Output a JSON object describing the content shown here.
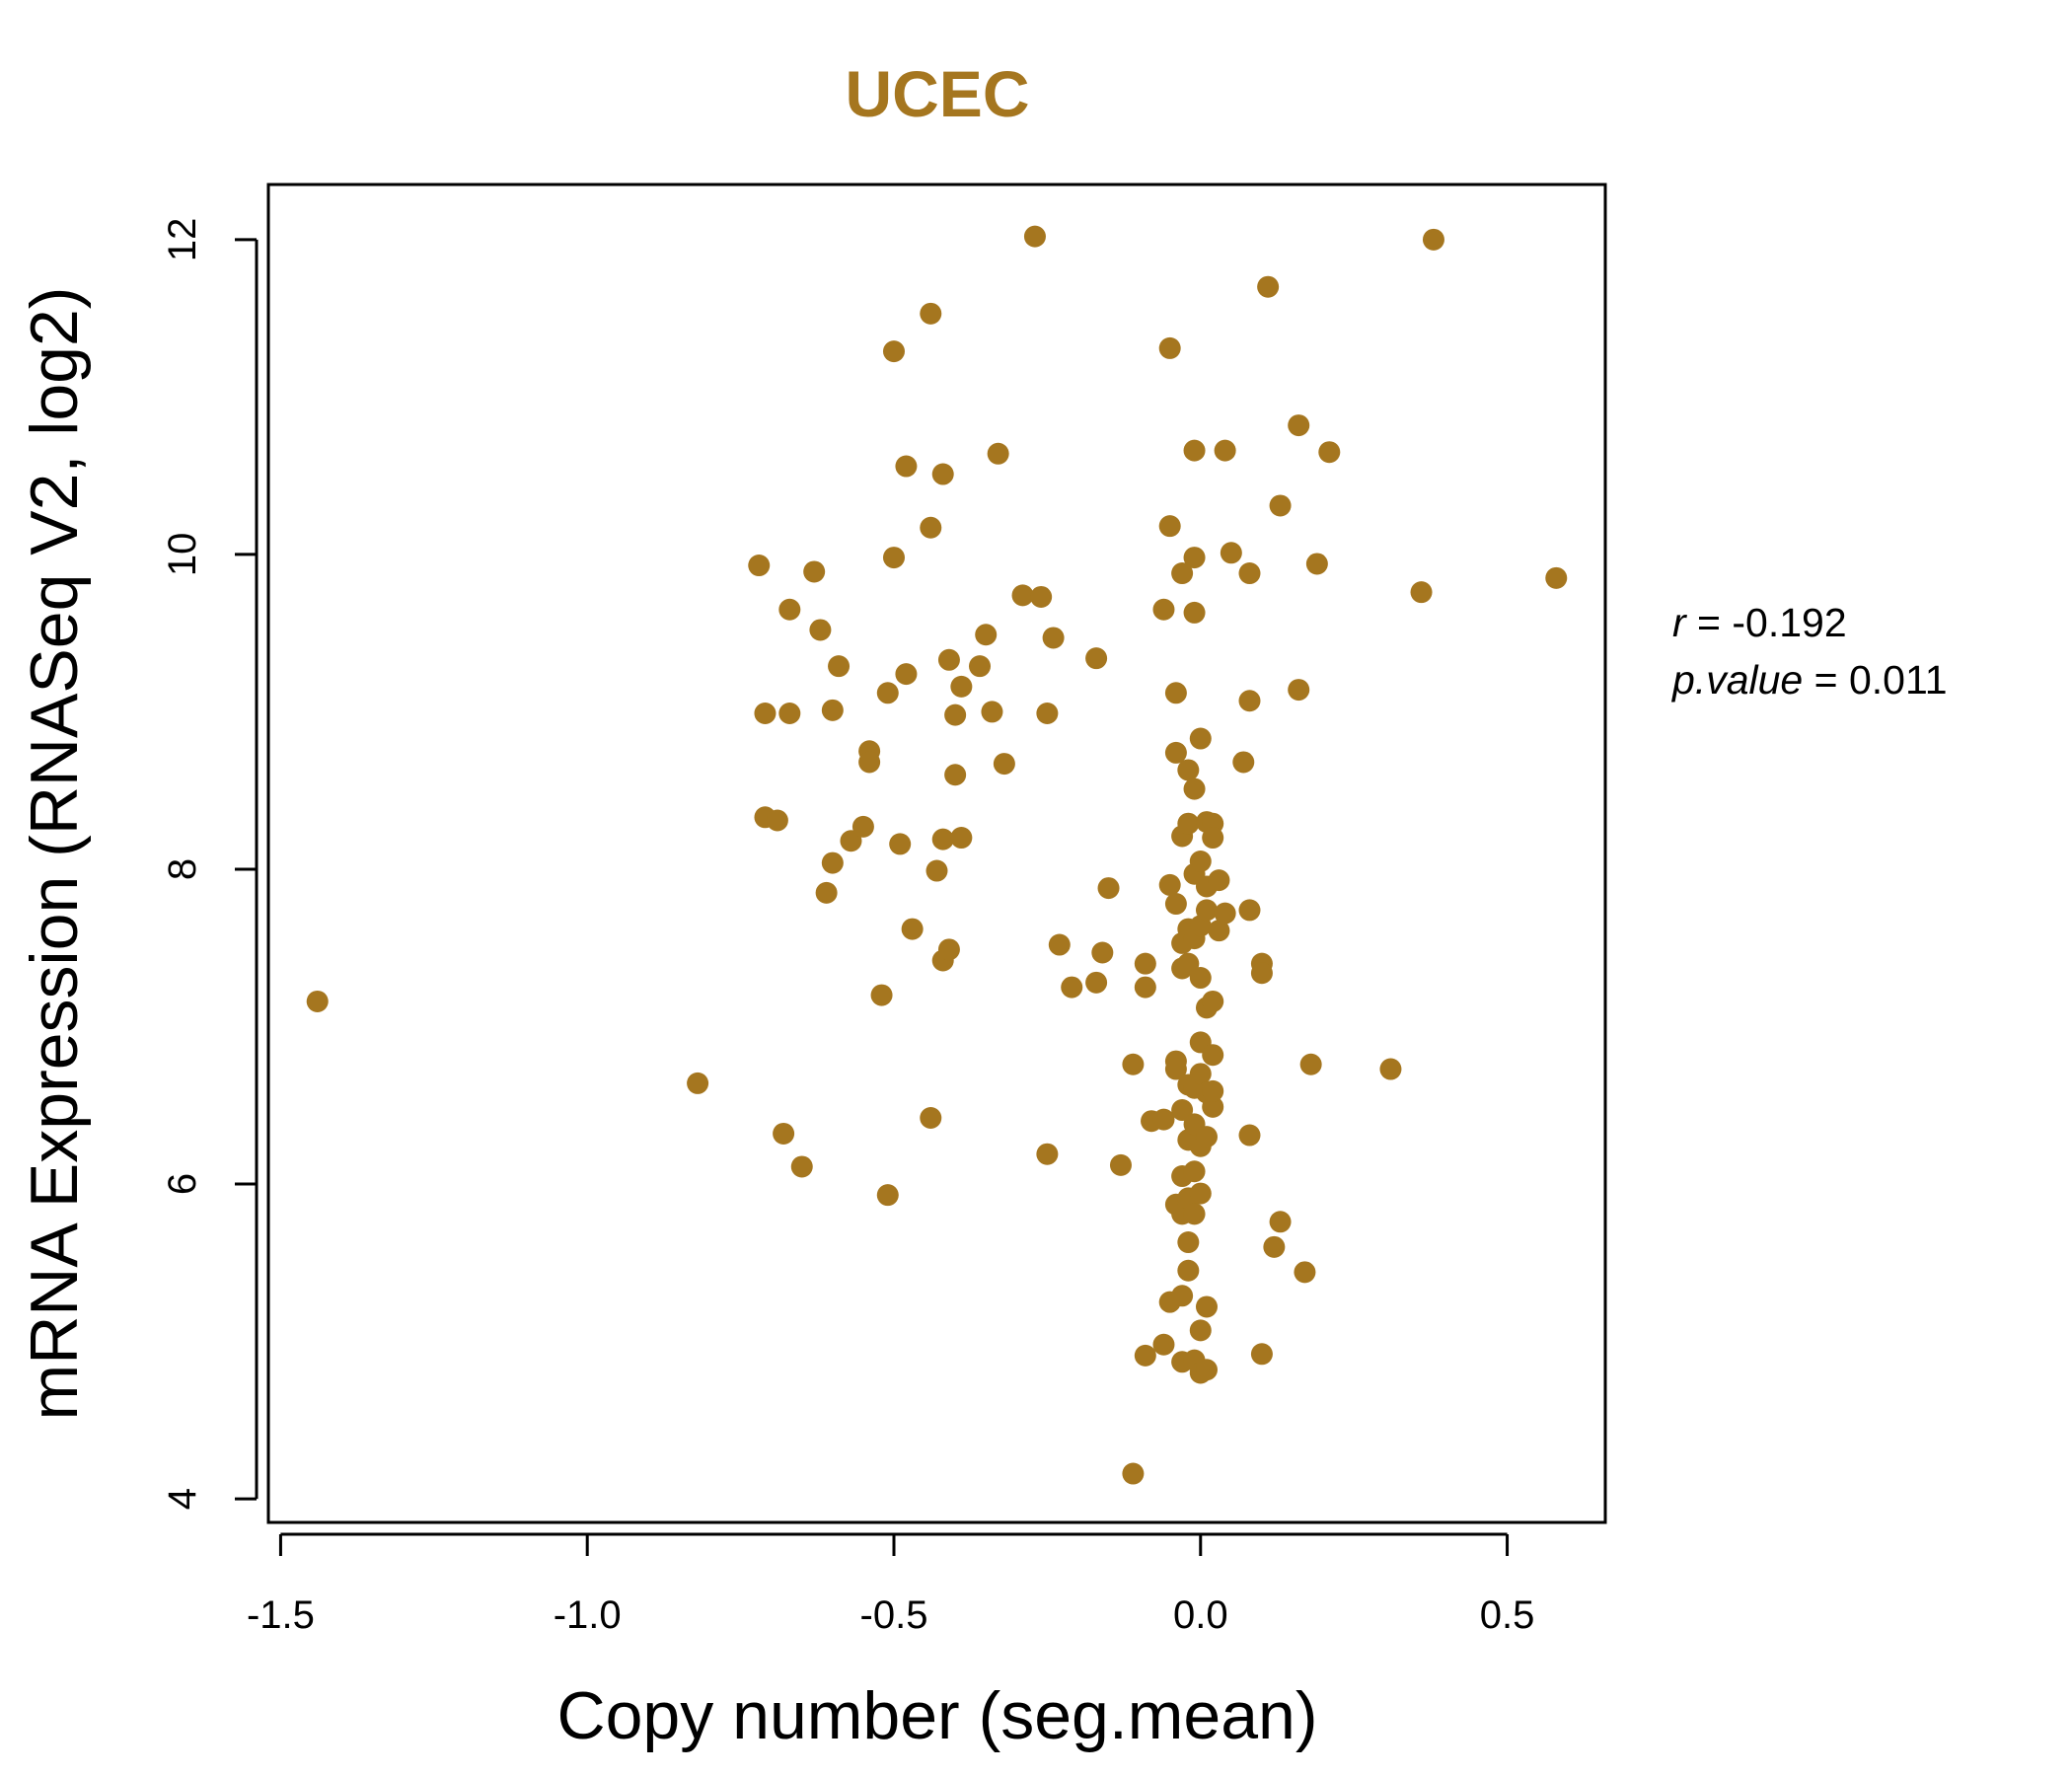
{
  "chart_data": {
    "type": "scatter",
    "title": "UCEC",
    "xlabel": "Copy number (seg.mean)",
    "ylabel": "mRNA Expression (RNASeq V2, log2)",
    "xlim": [
      -1.52,
      0.66
    ],
    "ylim": [
      3.85,
      12.35
    ],
    "xticks": [
      -1.5,
      -1.0,
      -0.5,
      0.0,
      0.5
    ],
    "xtick_labels": [
      "-1.5",
      "-1.0",
      "-0.5",
      "0.0",
      "0.5"
    ],
    "yticks": [
      4,
      6,
      8,
      10,
      12
    ],
    "ytick_labels": [
      "4",
      "6",
      "8",
      "10",
      "12"
    ],
    "grid": false,
    "legend": "none",
    "colors": {
      "points": "#A5761F",
      "title": "#A5761F",
      "axes": "#000000"
    },
    "stats": {
      "r_label": "r",
      "r_value": "-0.192",
      "p_label": "p.value",
      "p_value": "0.011"
    },
    "points": [
      [
        -1.44,
        7.16
      ],
      [
        -0.82,
        6.64
      ],
      [
        -0.72,
        9.93
      ],
      [
        -0.71,
        8.99
      ],
      [
        -0.71,
        8.33
      ],
      [
        -0.69,
        8.31
      ],
      [
        -0.67,
        8.99
      ],
      [
        -0.67,
        9.65
      ],
      [
        -0.68,
        6.32
      ],
      [
        -0.65,
        6.11
      ],
      [
        -0.63,
        9.89
      ],
      [
        -0.62,
        9.52
      ],
      [
        -0.6,
        9.01
      ],
      [
        -0.6,
        8.04
      ],
      [
        -0.61,
        7.85
      ],
      [
        -0.59,
        9.29
      ],
      [
        -0.57,
        8.18
      ],
      [
        -0.55,
        8.27
      ],
      [
        -0.54,
        8.75
      ],
      [
        -0.54,
        8.68
      ],
      [
        -0.52,
        7.2
      ],
      [
        -0.51,
        9.12
      ],
      [
        -0.51,
        5.93
      ],
      [
        -0.5,
        11.29
      ],
      [
        -0.5,
        9.98
      ],
      [
        -0.49,
        8.16
      ],
      [
        -0.48,
        10.56
      ],
      [
        -0.48,
        9.24
      ],
      [
        -0.47,
        7.62
      ],
      [
        -0.44,
        11.53
      ],
      [
        -0.44,
        10.17
      ],
      [
        -0.44,
        6.42
      ],
      [
        -0.43,
        7.99
      ],
      [
        -0.42,
        10.51
      ],
      [
        -0.42,
        8.19
      ],
      [
        -0.42,
        7.42
      ],
      [
        -0.41,
        7.49
      ],
      [
        -0.41,
        9.33
      ],
      [
        -0.4,
        8.98
      ],
      [
        -0.4,
        8.6
      ],
      [
        -0.39,
        9.16
      ],
      [
        -0.39,
        8.2
      ],
      [
        -0.36,
        9.29
      ],
      [
        -0.35,
        9.49
      ],
      [
        -0.34,
        9.0
      ],
      [
        -0.33,
        10.64
      ],
      [
        -0.32,
        8.67
      ],
      [
        -0.29,
        9.74
      ],
      [
        -0.27,
        12.02
      ],
      [
        -0.26,
        9.73
      ],
      [
        -0.25,
        8.99
      ],
      [
        -0.25,
        6.19
      ],
      [
        -0.24,
        9.47
      ],
      [
        -0.23,
        7.52
      ],
      [
        -0.21,
        7.25
      ],
      [
        -0.17,
        9.34
      ],
      [
        -0.17,
        7.28
      ],
      [
        -0.16,
        7.47
      ],
      [
        -0.15,
        7.88
      ],
      [
        -0.13,
        6.12
      ],
      [
        -0.11,
        6.76
      ],
      [
        -0.11,
        4.16
      ],
      [
        -0.09,
        7.4
      ],
      [
        -0.09,
        7.25
      ],
      [
        -0.08,
        6.4
      ],
      [
        -0.09,
        4.91
      ],
      [
        -0.06,
        9.65
      ],
      [
        -0.06,
        6.41
      ],
      [
        -0.06,
        4.98
      ],
      [
        -0.05,
        11.31
      ],
      [
        -0.05,
        10.18
      ],
      [
        -0.05,
        7.9
      ],
      [
        -0.04,
        7.78
      ],
      [
        -0.05,
        5.25
      ],
      [
        -0.04,
        8.74
      ],
      [
        -0.04,
        9.12
      ],
      [
        -0.04,
        6.78
      ],
      [
        -0.03,
        9.88
      ],
      [
        -0.03,
        8.21
      ],
      [
        -0.03,
        7.53
      ],
      [
        -0.03,
        7.37
      ],
      [
        -0.04,
        6.73
      ],
      [
        -0.03,
        6.47
      ],
      [
        -0.03,
        6.05
      ],
      [
        -0.04,
        5.87
      ],
      [
        -0.03,
        5.81
      ],
      [
        -0.03,
        5.29
      ],
      [
        -0.03,
        4.87
      ],
      [
        -0.02,
        8.63
      ],
      [
        -0.02,
        8.29
      ],
      [
        -0.02,
        7.62
      ],
      [
        -0.02,
        7.4
      ],
      [
        -0.02,
        6.63
      ],
      [
        -0.02,
        6.28
      ],
      [
        -0.02,
        5.91
      ],
      [
        -0.02,
        5.63
      ],
      [
        -0.02,
        5.45
      ],
      [
        -0.01,
        10.66
      ],
      [
        -0.01,
        9.98
      ],
      [
        -0.01,
        9.63
      ],
      [
        -0.01,
        8.51
      ],
      [
        -0.01,
        7.97
      ],
      [
        -0.01,
        7.56
      ],
      [
        -0.01,
        6.61
      ],
      [
        -0.01,
        6.38
      ],
      [
        -0.01,
        6.08
      ],
      [
        -0.01,
        5.81
      ],
      [
        -0.01,
        4.88
      ],
      [
        0.0,
        8.83
      ],
      [
        0.0,
        8.05
      ],
      [
        0.0,
        7.64
      ],
      [
        0.0,
        7.31
      ],
      [
        0.0,
        6.9
      ],
      [
        0.0,
        6.7
      ],
      [
        0.0,
        6.24
      ],
      [
        0.0,
        5.94
      ],
      [
        0.0,
        5.07
      ],
      [
        0.0,
        4.8
      ],
      [
        0.01,
        8.3
      ],
      [
        0.01,
        7.89
      ],
      [
        0.01,
        7.74
      ],
      [
        0.01,
        7.12
      ],
      [
        0.01,
        6.58
      ],
      [
        0.01,
        6.3
      ],
      [
        0.01,
        5.22
      ],
      [
        0.01,
        4.82
      ],
      [
        0.02,
        8.29
      ],
      [
        0.02,
        8.2
      ],
      [
        0.02,
        7.16
      ],
      [
        0.02,
        6.82
      ],
      [
        0.02,
        6.49
      ],
      [
        0.02,
        6.59
      ],
      [
        0.03,
        7.93
      ],
      [
        0.03,
        7.61
      ],
      [
        0.04,
        10.66
      ],
      [
        0.04,
        7.72
      ],
      [
        0.05,
        10.01
      ],
      [
        0.07,
        8.68
      ],
      [
        0.08,
        9.88
      ],
      [
        0.08,
        9.07
      ],
      [
        0.08,
        7.74
      ],
      [
        0.08,
        6.31
      ],
      [
        0.1,
        7.4
      ],
      [
        0.1,
        7.34
      ],
      [
        0.1,
        4.92
      ],
      [
        0.11,
        11.7
      ],
      [
        0.12,
        5.6
      ],
      [
        0.13,
        10.31
      ],
      [
        0.13,
        5.76
      ],
      [
        0.16,
        10.82
      ],
      [
        0.16,
        9.14
      ],
      [
        0.17,
        5.44
      ],
      [
        0.18,
        6.76
      ],
      [
        0.19,
        9.94
      ],
      [
        0.21,
        10.65
      ],
      [
        0.31,
        6.73
      ],
      [
        0.36,
        9.76
      ],
      [
        0.38,
        12.0
      ],
      [
        0.58,
        9.85
      ]
    ]
  }
}
